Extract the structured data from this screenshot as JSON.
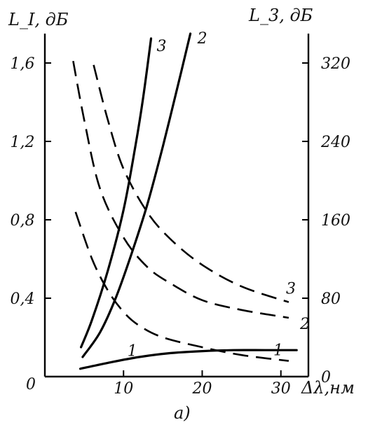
{
  "chart_data": {
    "type": "line",
    "left_axis": {
      "title": "L_I, дБ",
      "ylim": [
        0,
        1.75
      ],
      "ticks": [
        0,
        0.4,
        0.8,
        1.2,
        1.6
      ],
      "tick_labels": [
        "0",
        "0,4",
        "0,8",
        "1,2",
        "1,6"
      ]
    },
    "right_axis": {
      "title": "L_3, дБ",
      "ylim": [
        0,
        350
      ],
      "ticks": [
        0,
        80,
        160,
        240,
        320
      ],
      "tick_labels": [
        "0",
        "80",
        "160",
        "240",
        "320"
      ]
    },
    "x_axis": {
      "title": "Δλ,нм",
      "xlim": [
        0,
        33.5
      ],
      "ticks": [
        10,
        20,
        30
      ],
      "tick_labels": [
        "10",
        "20",
        "30"
      ]
    },
    "caption": "a)",
    "series": [
      {
        "label": "1",
        "style": "solid",
        "axis": "left",
        "x": [
          4.5,
          8,
          12,
          16,
          20,
          24,
          28,
          32
        ],
        "y": [
          0.04,
          0.07,
          0.1,
          0.12,
          0.13,
          0.135,
          0.135,
          0.135
        ]
      },
      {
        "label": "2",
        "style": "solid",
        "axis": "right",
        "x": [
          4.8,
          7,
          9,
          11,
          13,
          15,
          17,
          18.5
        ],
        "y": [
          20,
          45,
          80,
          125,
          175,
          235,
          300,
          350
        ]
      },
      {
        "label": "3",
        "style": "solid",
        "axis": "right",
        "x": [
          4.6,
          6,
          8,
          10,
          11.5,
          12.5,
          13.5
        ],
        "y": [
          30,
          58,
          108,
          170,
          235,
          285,
          345
        ]
      },
      {
        "label": "1",
        "style": "dashed",
        "axis": "right",
        "x": [
          3.9,
          6,
          8,
          10,
          12,
          15,
          20,
          25,
          31
        ],
        "y": [
          168,
          120,
          88,
          66,
          52,
          40,
          30,
          22,
          16
        ]
      },
      {
        "label": "2",
        "style": "dashed",
        "axis": "right",
        "x": [
          3.6,
          5,
          7,
          10,
          13,
          16,
          20,
          25,
          31
        ],
        "y": [
          322,
          262,
          192,
          142,
          112,
          95,
          78,
          68,
          60
        ]
      },
      {
        "label": "3",
        "style": "dashed",
        "axis": "right",
        "x": [
          6.2,
          8,
          10,
          13,
          16,
          20,
          25,
          31
        ],
        "y": [
          318,
          262,
          212,
          168,
          140,
          114,
          92,
          76
        ]
      }
    ]
  }
}
